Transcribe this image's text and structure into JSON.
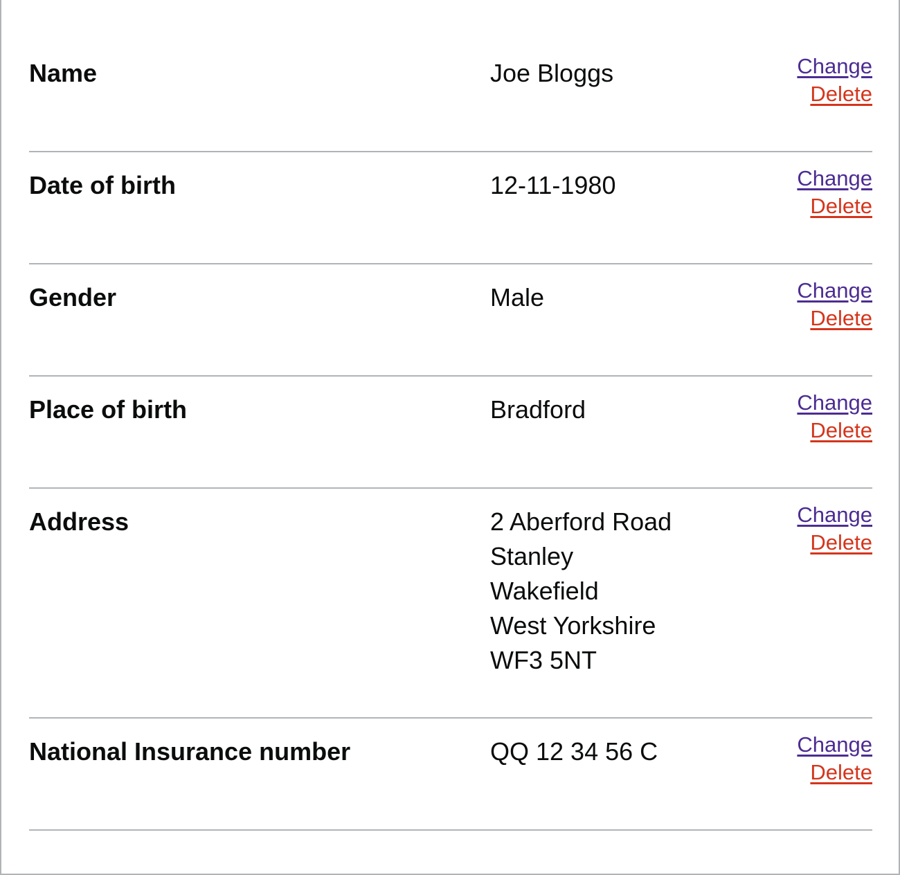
{
  "summary_list": {
    "rows": [
      {
        "key": "Name",
        "value": [
          "Joe Bloggs"
        ],
        "change_label": "Change",
        "delete_label": "Delete"
      },
      {
        "key": "Date of birth",
        "value": [
          "12-11-1980"
        ],
        "change_label": "Change",
        "delete_label": "Delete"
      },
      {
        "key": "Gender",
        "value": [
          "Male"
        ],
        "change_label": "Change",
        "delete_label": "Delete"
      },
      {
        "key": "Place of birth",
        "value": [
          "Bradford"
        ],
        "change_label": "Change",
        "delete_label": "Delete"
      },
      {
        "key": "Address",
        "value": [
          "2 Aberford Road",
          "Stanley",
          "Wakefield",
          "West Yorkshire",
          "WF3 5NT"
        ],
        "change_label": "Change",
        "delete_label": "Delete"
      },
      {
        "key": "National Insurance number",
        "value": [
          "QQ 12 34 56 C"
        ],
        "change_label": "Change",
        "delete_label": "Delete"
      }
    ]
  },
  "colors": {
    "change_link": "#4c2c92",
    "delete_link": "#d4351c",
    "text": "#0b0c0c",
    "divider": "#b1b4b6"
  }
}
